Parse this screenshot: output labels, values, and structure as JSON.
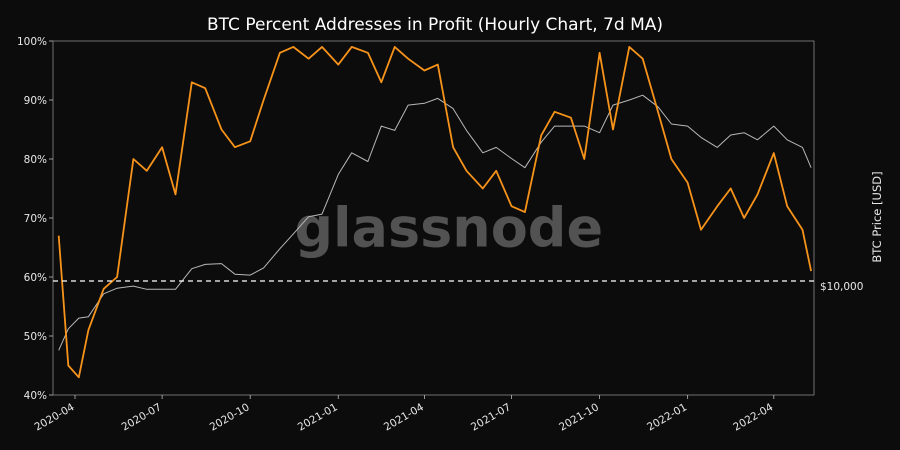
{
  "chart_data": {
    "type": "line",
    "title": "BTC Percent Addresses in Profit (Hourly Chart, 7d MA)",
    "xlabel": "",
    "ylabel_left": "",
    "ylabel_right": "BTC Price [USD]",
    "watermark": "glassnode",
    "legend": "none",
    "grid": false,
    "x_tick_labels": [
      "2020-04",
      "2020-07",
      "2020-10",
      "2021-01",
      "2021-04",
      "2021-07",
      "2021-10",
      "2022-01",
      "2022-04"
    ],
    "y_left_ticks": [
      "40%",
      "50%",
      "60%",
      "70%",
      "80%",
      "90%",
      "100%"
    ],
    "y_left_range": [
      40,
      100
    ],
    "right_axis_label": "$10,000",
    "reference_line": {
      "y_right": 10000,
      "style": "dashed",
      "color": "#ffffff"
    },
    "x": [
      "2020-03-15",
      "2020-03-25",
      "2020-04-05",
      "2020-04-15",
      "2020-05-01",
      "2020-05-15",
      "2020-06-01",
      "2020-06-15",
      "2020-07-01",
      "2020-07-15",
      "2020-08-01",
      "2020-08-15",
      "2020-09-01",
      "2020-09-15",
      "2020-10-01",
      "2020-10-15",
      "2020-11-01",
      "2020-11-15",
      "2020-12-01",
      "2020-12-15",
      "2021-01-01",
      "2021-01-15",
      "2021-02-01",
      "2021-02-15",
      "2021-03-01",
      "2021-03-15",
      "2021-04-01",
      "2021-04-15",
      "2021-05-01",
      "2021-05-15",
      "2021-06-01",
      "2021-06-15",
      "2021-07-01",
      "2021-07-15",
      "2021-08-01",
      "2021-08-15",
      "2021-09-01",
      "2021-09-15",
      "2021-10-01",
      "2021-10-15",
      "2021-11-01",
      "2021-11-15",
      "2021-12-01",
      "2021-12-15",
      "2022-01-01",
      "2022-01-15",
      "2022-02-01",
      "2022-02-15",
      "2022-03-01",
      "2022-03-15",
      "2022-04-01",
      "2022-04-15",
      "2022-05-01",
      "2022-05-10"
    ],
    "series": [
      {
        "color": "#f7931a",
        "axis": "left",
        "values": [
          67,
          45,
          43,
          51,
          58,
          60,
          80,
          78,
          82,
          74,
          93,
          92,
          85,
          82,
          83,
          90,
          98,
          99,
          97,
          99,
          96,
          99,
          98,
          93,
          99,
          97,
          95,
          96,
          82,
          78,
          75,
          78,
          72,
          71,
          84,
          88,
          87,
          80,
          98,
          85,
          99,
          97,
          88,
          80,
          76,
          68,
          72,
          75,
          70,
          74,
          81,
          72,
          68,
          61
        ]
      },
      {
        "color": "#b8b8b8",
        "axis": "right",
        "values": [
          5000,
          6200,
          6900,
          7000,
          8800,
          9300,
          9500,
          9200,
          9200,
          9200,
          11300,
          11800,
          11900,
          10700,
          10600,
          11400,
          13800,
          16000,
          19000,
          19500,
          29000,
          36000,
          33000,
          47000,
          45000,
          58000,
          59000,
          62000,
          56000,
          45000,
          36000,
          38000,
          34000,
          31000,
          40000,
          47000,
          47000,
          47000,
          44000,
          58000,
          61000,
          64000,
          57000,
          48000,
          47000,
          42000,
          38000,
          43000,
          44000,
          41000,
          47000,
          41000,
          38000,
          31000
        ]
      }
    ]
  }
}
